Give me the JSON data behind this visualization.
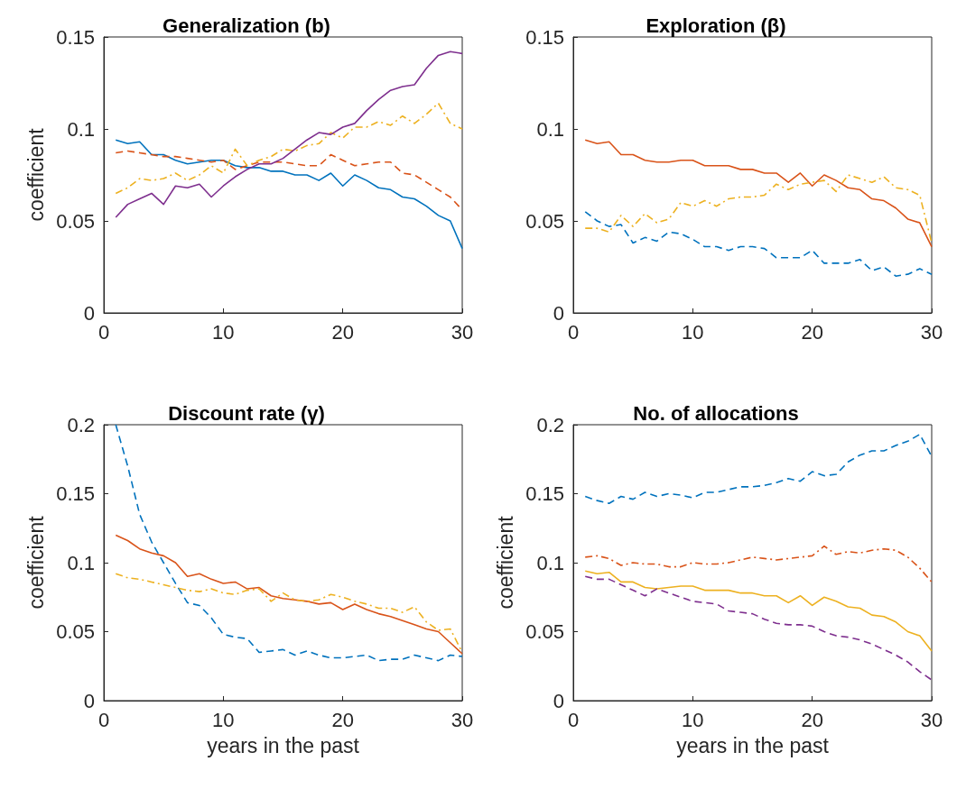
{
  "chart_data": [
    {
      "type": "line",
      "title": "Generalization (b)",
      "ylabel": "coefficient",
      "x": [
        1,
        2,
        3,
        4,
        5,
        6,
        7,
        8,
        9,
        10,
        11,
        12,
        13,
        14,
        15,
        16,
        17,
        18,
        19,
        20,
        21,
        22,
        23,
        24,
        25,
        26,
        27,
        28,
        29,
        30
      ],
      "xlim": [
        0,
        30
      ],
      "xticks": [
        0,
        10,
        20,
        30
      ],
      "ylim": [
        0,
        0.15
      ],
      "yticks": [
        0,
        0.05,
        0.1,
        0.15
      ],
      "series": [
        {
          "color": "#0072bd",
          "line_style": "solid",
          "values": [
            0.094,
            0.092,
            0.093,
            0.086,
            0.086,
            0.083,
            0.081,
            0.082,
            0.083,
            0.083,
            0.08,
            0.079,
            0.079,
            0.077,
            0.077,
            0.075,
            0.075,
            0.072,
            0.076,
            0.069,
            0.075,
            0.072,
            0.068,
            0.067,
            0.063,
            0.062,
            0.058,
            0.053,
            0.05,
            0.035
          ]
        },
        {
          "color": "#d95319",
          "line_style": "dashed",
          "values": [
            0.087,
            0.088,
            0.087,
            0.086,
            0.085,
            0.085,
            0.084,
            0.083,
            0.082,
            0.083,
            0.078,
            0.08,
            0.082,
            0.082,
            0.082,
            0.081,
            0.08,
            0.08,
            0.086,
            0.083,
            0.08,
            0.081,
            0.082,
            0.082,
            0.076,
            0.075,
            0.071,
            0.067,
            0.063,
            0.056
          ]
        },
        {
          "color": "#edb120",
          "line_style": "dashdot",
          "values": [
            0.065,
            0.068,
            0.073,
            0.072,
            0.073,
            0.076,
            0.072,
            0.075,
            0.08,
            0.076,
            0.089,
            0.08,
            0.083,
            0.085,
            0.089,
            0.088,
            0.091,
            0.092,
            0.098,
            0.095,
            0.101,
            0.101,
            0.104,
            0.102,
            0.107,
            0.103,
            0.108,
            0.114,
            0.103,
            0.1
          ]
        },
        {
          "color": "#7e2f8e",
          "line_style": "solid",
          "values": [
            0.052,
            0.059,
            0.062,
            0.065,
            0.059,
            0.069,
            0.068,
            0.07,
            0.063,
            0.069,
            0.074,
            0.078,
            0.081,
            0.081,
            0.084,
            0.089,
            0.094,
            0.098,
            0.097,
            0.101,
            0.103,
            0.11,
            0.116,
            0.121,
            0.123,
            0.124,
            0.133,
            0.14,
            0.142,
            0.141
          ]
        }
      ]
    },
    {
      "type": "line",
      "title": "Exploration (β)",
      "x": [
        1,
        2,
        3,
        4,
        5,
        6,
        7,
        8,
        9,
        10,
        11,
        12,
        13,
        14,
        15,
        16,
        17,
        18,
        19,
        20,
        21,
        22,
        23,
        24,
        25,
        26,
        27,
        28,
        29,
        30
      ],
      "xlim": [
        0,
        30
      ],
      "xticks": [
        0,
        10,
        20,
        30
      ],
      "ylim": [
        0,
        0.15
      ],
      "yticks": [
        0,
        0.05,
        0.1,
        0.15
      ],
      "series": [
        {
          "color": "#d95319",
          "line_style": "solid",
          "values": [
            0.094,
            0.092,
            0.093,
            0.086,
            0.086,
            0.083,
            0.082,
            0.082,
            0.083,
            0.083,
            0.08,
            0.08,
            0.08,
            0.078,
            0.078,
            0.076,
            0.076,
            0.071,
            0.076,
            0.069,
            0.075,
            0.072,
            0.068,
            0.067,
            0.062,
            0.061,
            0.057,
            0.051,
            0.049,
            0.036
          ]
        },
        {
          "color": "#edb120",
          "line_style": "dashdot",
          "values": [
            0.046,
            0.046,
            0.044,
            0.053,
            0.047,
            0.054,
            0.049,
            0.051,
            0.06,
            0.058,
            0.061,
            0.058,
            0.062,
            0.063,
            0.063,
            0.064,
            0.07,
            0.067,
            0.07,
            0.071,
            0.072,
            0.066,
            0.075,
            0.073,
            0.071,
            0.074,
            0.068,
            0.067,
            0.064,
            0.038
          ]
        },
        {
          "color": "#0072bd",
          "line_style": "dashed",
          "values": [
            0.055,
            0.05,
            0.047,
            0.048,
            0.038,
            0.041,
            0.039,
            0.044,
            0.043,
            0.04,
            0.036,
            0.036,
            0.034,
            0.036,
            0.036,
            0.035,
            0.03,
            0.03,
            0.03,
            0.034,
            0.027,
            0.027,
            0.027,
            0.029,
            0.023,
            0.025,
            0.02,
            0.021,
            0.024,
            0.021
          ]
        }
      ]
    },
    {
      "type": "line",
      "title": "Discount rate (γ)",
      "xlabel": "years in the past",
      "ylabel": "coefficient",
      "x": [
        1,
        2,
        3,
        4,
        5,
        6,
        7,
        8,
        9,
        10,
        11,
        12,
        13,
        14,
        15,
        16,
        17,
        18,
        19,
        20,
        21,
        22,
        23,
        24,
        25,
        26,
        27,
        28,
        29,
        30
      ],
      "xlim": [
        0,
        30
      ],
      "xticks": [
        0,
        10,
        20,
        30
      ],
      "ylim": [
        0,
        0.2
      ],
      "yticks": [
        0,
        0.05,
        0.1,
        0.15,
        0.2
      ],
      "series": [
        {
          "color": "#0072bd",
          "line_style": "dashed",
          "values": [
            0.2,
            0.17,
            0.135,
            0.115,
            0.1,
            0.085,
            0.071,
            0.069,
            0.06,
            0.048,
            0.046,
            0.045,
            0.035,
            0.036,
            0.037,
            0.033,
            0.036,
            0.033,
            0.031,
            0.031,
            0.032,
            0.033,
            0.029,
            0.03,
            0.03,
            0.033,
            0.031,
            0.029,
            0.033,
            0.032
          ]
        },
        {
          "color": "#d95319",
          "line_style": "solid",
          "values": [
            0.12,
            0.116,
            0.11,
            0.107,
            0.105,
            0.1,
            0.09,
            0.092,
            0.088,
            0.085,
            0.086,
            0.081,
            0.082,
            0.076,
            0.074,
            0.073,
            0.072,
            0.07,
            0.071,
            0.066,
            0.07,
            0.066,
            0.063,
            0.061,
            0.058,
            0.055,
            0.052,
            0.05,
            0.042,
            0.034
          ]
        },
        {
          "color": "#edb120",
          "line_style": "dashdot",
          "values": [
            0.092,
            0.089,
            0.088,
            0.086,
            0.084,
            0.082,
            0.08,
            0.079,
            0.081,
            0.078,
            0.077,
            0.08,
            0.081,
            0.072,
            0.078,
            0.073,
            0.072,
            0.073,
            0.077,
            0.075,
            0.072,
            0.07,
            0.067,
            0.067,
            0.064,
            0.068,
            0.057,
            0.051,
            0.052,
            0.035
          ]
        }
      ]
    },
    {
      "type": "line",
      "title": "No. of allocations",
      "xlabel": "years in the past",
      "ylabel": "coefficient",
      "x": [
        1,
        2,
        3,
        4,
        5,
        6,
        7,
        8,
        9,
        10,
        11,
        12,
        13,
        14,
        15,
        16,
        17,
        18,
        19,
        20,
        21,
        22,
        23,
        24,
        25,
        26,
        27,
        28,
        29,
        30
      ],
      "xlim": [
        0,
        30
      ],
      "xticks": [
        0,
        10,
        20,
        30
      ],
      "ylim": [
        0,
        0.2
      ],
      "yticks": [
        0,
        0.05,
        0.1,
        0.15,
        0.2
      ],
      "series": [
        {
          "color": "#0072bd",
          "line_style": "dashed",
          "values": [
            0.148,
            0.145,
            0.143,
            0.148,
            0.146,
            0.151,
            0.148,
            0.15,
            0.149,
            0.147,
            0.151,
            0.151,
            0.153,
            0.155,
            0.155,
            0.156,
            0.158,
            0.161,
            0.159,
            0.166,
            0.163,
            0.164,
            0.173,
            0.178,
            0.181,
            0.181,
            0.185,
            0.188,
            0.193,
            0.177
          ]
        },
        {
          "color": "#d95319",
          "line_style": "dashdot",
          "values": [
            0.104,
            0.105,
            0.103,
            0.098,
            0.1,
            0.099,
            0.099,
            0.097,
            0.097,
            0.1,
            0.099,
            0.099,
            0.1,
            0.102,
            0.104,
            0.103,
            0.102,
            0.103,
            0.104,
            0.105,
            0.112,
            0.106,
            0.108,
            0.107,
            0.109,
            0.11,
            0.109,
            0.104,
            0.096,
            0.086
          ]
        },
        {
          "color": "#edb120",
          "line_style": "solid",
          "values": [
            0.094,
            0.092,
            0.093,
            0.086,
            0.086,
            0.082,
            0.081,
            0.082,
            0.083,
            0.083,
            0.08,
            0.08,
            0.08,
            0.078,
            0.078,
            0.076,
            0.076,
            0.071,
            0.076,
            0.069,
            0.075,
            0.072,
            0.068,
            0.067,
            0.062,
            0.061,
            0.057,
            0.05,
            0.047,
            0.036
          ]
        },
        {
          "color": "#7e2f8e",
          "line_style": "dashed",
          "values": [
            0.09,
            0.088,
            0.088,
            0.084,
            0.08,
            0.076,
            0.081,
            0.078,
            0.075,
            0.072,
            0.071,
            0.07,
            0.065,
            0.064,
            0.063,
            0.059,
            0.056,
            0.055,
            0.055,
            0.054,
            0.05,
            0.047,
            0.046,
            0.044,
            0.041,
            0.037,
            0.033,
            0.028,
            0.021,
            0.015
          ]
        }
      ]
    }
  ]
}
